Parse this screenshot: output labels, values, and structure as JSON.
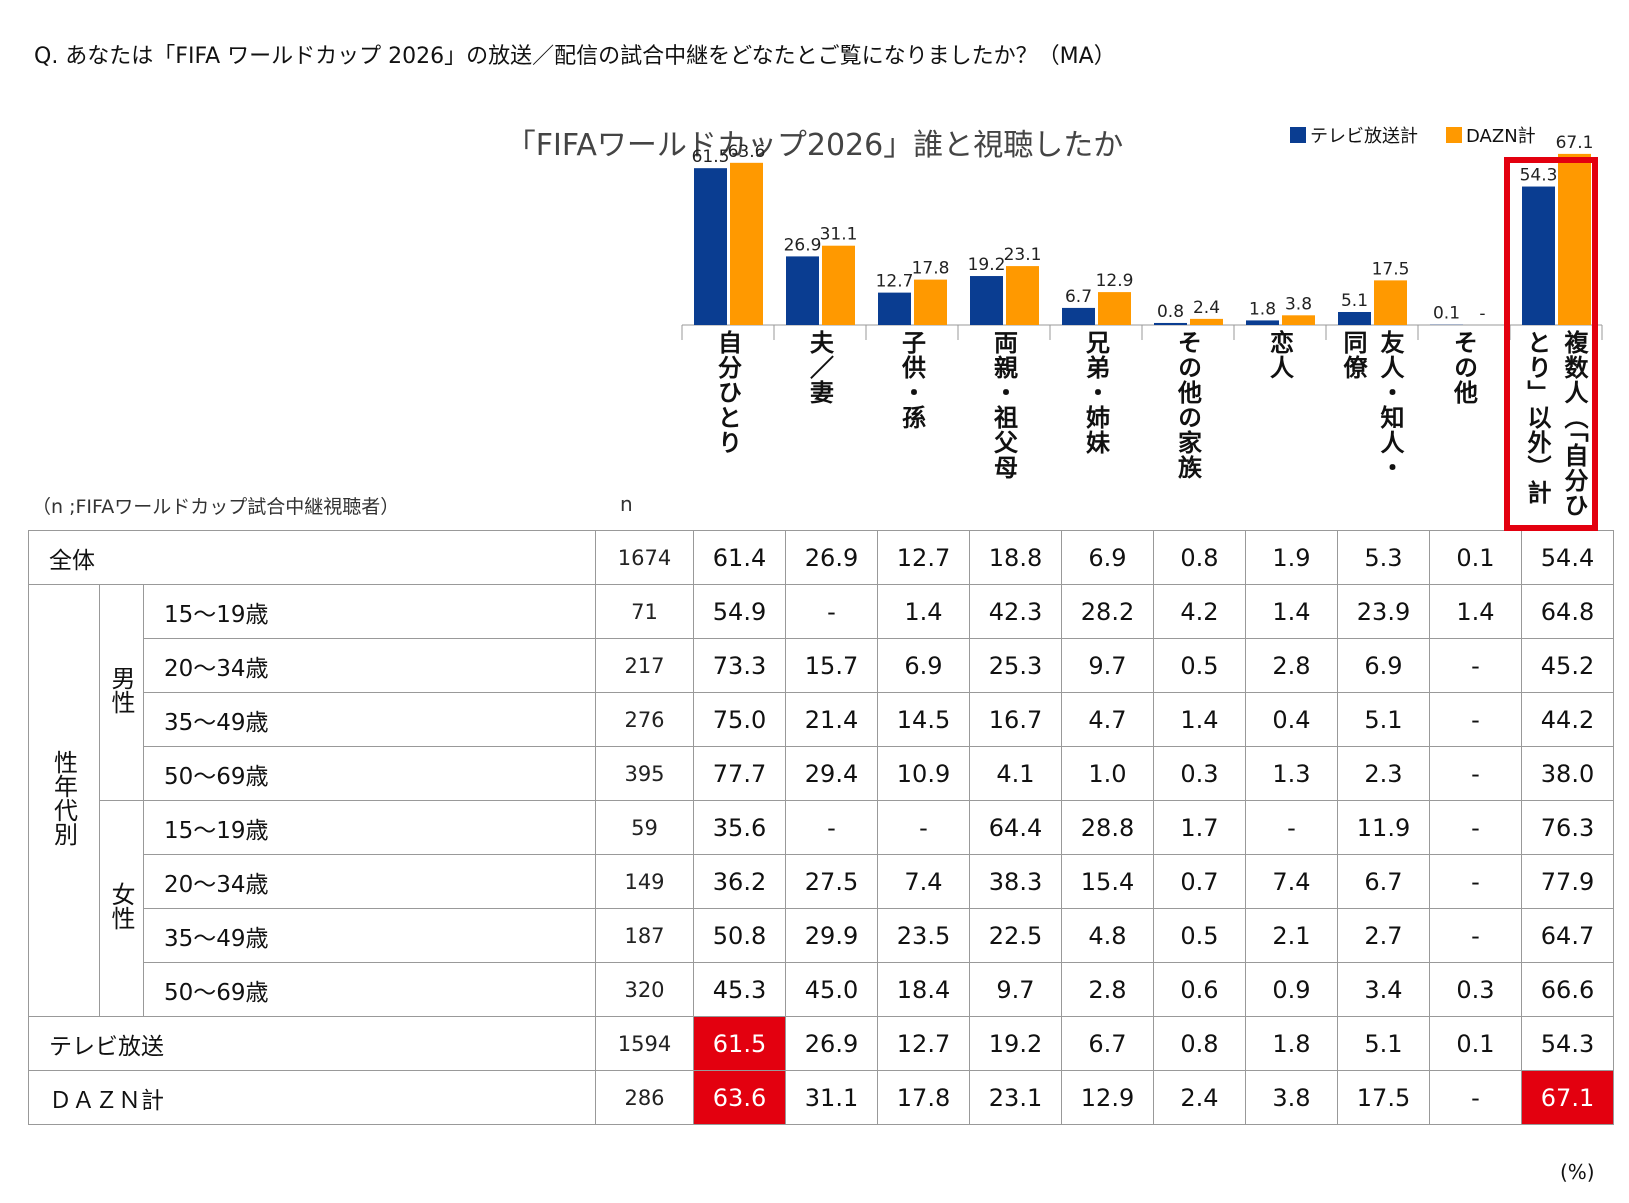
{
  "question": "Q. あなたは「FIFA ワールドカップ 2026」の放送／配信の試合中継をどなたとご覧になりましたか？（MA）",
  "sample_note": "（n ;FIFAワールドカップ試合中継視聴者）",
  "n_header": "n",
  "unit_note": "(%)",
  "colors": {
    "tv": "#0a3d91",
    "dazn": "#ff9900",
    "highlight": "#e3000f"
  },
  "chart_data": {
    "type": "bar",
    "title": "「FIFAワールドカップ2026」誰と視聴したか",
    "categories": [
      "自分ひとり",
      "夫／妻",
      "子供・孫",
      "両親・祖父母",
      "兄弟・姉妹",
      "その他の家族",
      "恋人",
      "友人・知人・同僚",
      "その他",
      "複数人（「自分ひとり」以外）計"
    ],
    "series": [
      {
        "name": "テレビ放送計",
        "values": [
          61.5,
          26.9,
          12.7,
          19.2,
          6.7,
          0.8,
          1.8,
          5.1,
          0.1,
          54.3
        ],
        "labels": [
          "61.5",
          "26.9",
          "12.7",
          "19.2",
          "6.7",
          "0.8",
          "1.8",
          "5.1",
          "0.1",
          "54.3"
        ]
      },
      {
        "name": "DAZN計",
        "values": [
          63.6,
          31.1,
          17.8,
          23.1,
          12.9,
          2.4,
          3.8,
          17.5,
          0,
          67.1
        ],
        "labels": [
          "63.6",
          "31.1",
          "17.8",
          "23.1",
          "12.9",
          "2.4",
          "3.8",
          "17.5",
          "-",
          "67.1"
        ]
      }
    ],
    "ylim": [
      0,
      80
    ]
  },
  "column_headers": [
    [
      "自分ひとり"
    ],
    [
      "夫／妻"
    ],
    [
      "子供・孫"
    ],
    [
      "両親・祖父母"
    ],
    [
      "兄弟・姉妹"
    ],
    [
      "その他の家族"
    ],
    [
      "恋人"
    ],
    [
      "友人・知人・",
      "同僚"
    ],
    [
      "その他"
    ],
    [
      "複数人（「自分ひ",
      "とり」以外）計"
    ]
  ],
  "table": {
    "total": {
      "label": "全体",
      "n": "1674",
      "values": [
        "61.4",
        "26.9",
        "12.7",
        "18.8",
        "6.9",
        "0.8",
        "1.9",
        "5.3",
        "0.1",
        "54.4"
      ]
    },
    "group_label": "性年代別",
    "male_label": "男性",
    "female_label": "女性",
    "male": [
      {
        "label": "15～19歳",
        "n": "71",
        "values": [
          "54.9",
          "-",
          "1.4",
          "42.3",
          "28.2",
          "4.2",
          "1.4",
          "23.9",
          "1.4",
          "64.8"
        ]
      },
      {
        "label": "20～34歳",
        "n": "217",
        "values": [
          "73.3",
          "15.7",
          "6.9",
          "25.3",
          "9.7",
          "0.5",
          "2.8",
          "6.9",
          "-",
          "45.2"
        ]
      },
      {
        "label": "35～49歳",
        "n": "276",
        "values": [
          "75.0",
          "21.4",
          "14.5",
          "16.7",
          "4.7",
          "1.4",
          "0.4",
          "5.1",
          "-",
          "44.2"
        ]
      },
      {
        "label": "50～69歳",
        "n": "395",
        "values": [
          "77.7",
          "29.4",
          "10.9",
          "4.1",
          "1.0",
          "0.3",
          "1.3",
          "2.3",
          "-",
          "38.0"
        ]
      }
    ],
    "female": [
      {
        "label": "15～19歳",
        "n": "59",
        "values": [
          "35.6",
          "-",
          "-",
          "64.4",
          "28.8",
          "1.7",
          "-",
          "11.9",
          "-",
          "76.3"
        ]
      },
      {
        "label": "20～34歳",
        "n": "149",
        "values": [
          "36.2",
          "27.5",
          "7.4",
          "38.3",
          "15.4",
          "0.7",
          "7.4",
          "6.7",
          "-",
          "77.9"
        ]
      },
      {
        "label": "35～49歳",
        "n": "187",
        "values": [
          "50.8",
          "29.9",
          "23.5",
          "22.5",
          "4.8",
          "0.5",
          "2.1",
          "2.7",
          "-",
          "64.7"
        ]
      },
      {
        "label": "50～69歳",
        "n": "320",
        "values": [
          "45.3",
          "45.0",
          "18.4",
          "9.7",
          "2.8",
          "0.6",
          "0.9",
          "3.4",
          "0.3",
          "66.6"
        ]
      }
    ],
    "tv": {
      "label": "テレビ放送",
      "n": "1594",
      "values": [
        "61.5",
        "26.9",
        "12.7",
        "19.2",
        "6.7",
        "0.8",
        "1.8",
        "5.1",
        "0.1",
        "54.3"
      ],
      "highlight": [
        0
      ]
    },
    "dazn": {
      "label": "ＤＡＺＮ計",
      "n": "286",
      "values": [
        "63.6",
        "31.1",
        "17.8",
        "23.1",
        "12.9",
        "2.4",
        "3.8",
        "17.5",
        "-",
        "67.1"
      ],
      "highlight": [
        0,
        9
      ]
    }
  }
}
